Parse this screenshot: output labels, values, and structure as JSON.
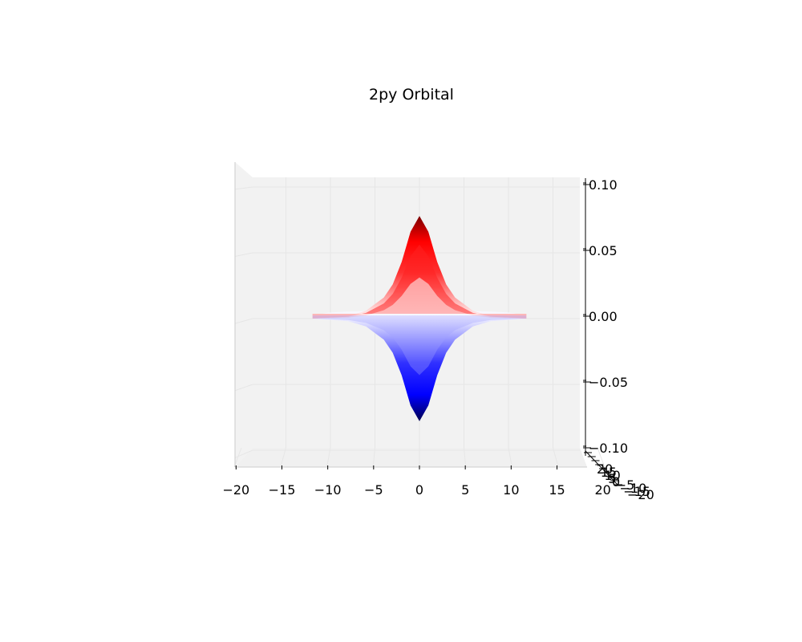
{
  "chart_data": {
    "type": "surface",
    "title": "2py Orbital",
    "xlabel": "",
    "ylabel": "",
    "zlabel": "",
    "x_ticks": [
      -20,
      -15,
      -10,
      -5,
      0,
      5,
      10,
      15,
      20
    ],
    "z_ticks": [
      0.1,
      0.05,
      0.0,
      -0.05,
      -0.1
    ],
    "z_tick_labels": [
      "0.10",
      "0.05",
      "0.00",
      "−0.05",
      "−0.10"
    ],
    "xlim": [
      -20,
      20
    ],
    "zlim": [
      -0.1,
      0.1
    ],
    "grid": true,
    "colormap": "seismic",
    "positive_lobe": {
      "x": [
        -12,
        -8,
        -6,
        -4,
        -3,
        -2,
        -1,
        0,
        1,
        2,
        3,
        4,
        6,
        8,
        12
      ],
      "z": [
        0.0,
        0.002,
        0.006,
        0.016,
        0.026,
        0.043,
        0.066,
        0.078,
        0.066,
        0.043,
        0.026,
        0.016,
        0.006,
        0.002,
        0.0
      ]
    },
    "negative_lobe": {
      "x": [
        -12,
        -8,
        -6,
        -4,
        -3,
        -2,
        -1,
        0,
        1,
        2,
        3,
        4,
        6,
        8,
        12
      ],
      "z": [
        0.0,
        -0.002,
        -0.006,
        -0.016,
        -0.026,
        -0.043,
        -0.066,
        -0.078,
        -0.066,
        -0.043,
        -0.026,
        -0.016,
        -0.006,
        -0.002,
        0.0
      ]
    },
    "colors": {
      "pos_peak": "#7a0000",
      "pos_mid": "#ff0000",
      "neg_mid": "#0000ff",
      "neg_peak": "#00004f",
      "pane": "#f2f2f2",
      "grid": "#e6e6e6"
    },
    "depth_axis_ticks": [
      "20",
      "15",
      "10",
      "5",
      "0",
      "−5",
      "−10",
      "−15",
      "−20"
    ]
  }
}
